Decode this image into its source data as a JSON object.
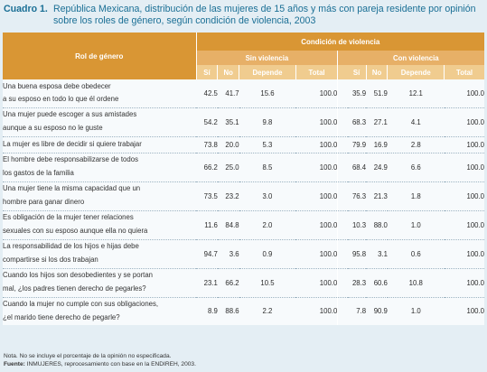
{
  "caption": {
    "number": "Cuadro 1.",
    "text": "República Mexicana, distribución de las mujeres de 15 años y más con pareja residente por opinión sobre los roles de género, según condición de violencia, 2003"
  },
  "table": {
    "row_header": "Rol de género",
    "group_header": "Condición de violencia",
    "sub_left": "Sin violencia",
    "sub_right": "Con violencia",
    "cols": [
      "Sí",
      "No",
      "Depende",
      "Total",
      "Sí",
      "No",
      "Depende",
      "Total"
    ],
    "rows": [
      {
        "l1": "Una buena esposa debe obedecer",
        "l2": "a su esposo en todo lo que él ordene",
        "v": [
          "42.5",
          "41.7",
          "15.6",
          "100.0",
          "35.9",
          "51.9",
          "12.1",
          "100.0"
        ]
      },
      {
        "l1": "Una mujer puede escoger a sus amistades",
        "l2": "aunque a su esposo no le guste",
        "v": [
          "54.2",
          "35.1",
          "9.8",
          "100.0",
          "68.3",
          "27.1",
          "4.1",
          "100.0"
        ]
      },
      {
        "l1": "La mujer es libre de decidir si quiere trabajar",
        "l2": "",
        "v": [
          "73.8",
          "20.0",
          "5.3",
          "100.0",
          "79.9",
          "16.9",
          "2.8",
          "100.0"
        ]
      },
      {
        "l1": "El hombre debe responsabilizarse de todos",
        "l2": "los gastos de la familia",
        "v": [
          "66.2",
          "25.0",
          "8.5",
          "100.0",
          "68.4",
          "24.9",
          "6.6",
          "100.0"
        ]
      },
      {
        "l1": "Una mujer tiene la misma capacidad que un",
        "l2": "hombre para ganar dinero",
        "v": [
          "73.5",
          "23.2",
          "3.0",
          "100.0",
          "76.3",
          "21.3",
          "1.8",
          "100.0"
        ]
      },
      {
        "l1": "Es obligación de la mujer tener relaciones",
        "l2": "sexuales con su esposo aunque ella no quiera",
        "v": [
          "11.6",
          "84.8",
          "2.0",
          "100.0",
          "10.3",
          "88.0",
          "1.0",
          "100.0"
        ]
      },
      {
        "l1": "La responsabilidad de los hijos e hijas debe",
        "l2": "compartirse si los dos trabajan",
        "v": [
          "94.7",
          "3.6",
          "0.9",
          "100.0",
          "95.8",
          "3.1",
          "0.6",
          "100.0"
        ]
      },
      {
        "l1": "Cuando los hijos son desobedientes y se portan",
        "l2": "mal, ¿los padres tienen derecho de pegarles?",
        "v": [
          "23.1",
          "66.2",
          "10.5",
          "100.0",
          "28.3",
          "60.6",
          "10.8",
          "100.0"
        ]
      },
      {
        "l1": "Cuando la mujer no cumple con sus obligaciones,",
        "l2": "¿el marido tiene derecho de pegarle?",
        "v": [
          "8.9",
          "88.6",
          "2.2",
          "100.0",
          "7.8",
          "90.9",
          "1.0",
          "100.0"
        ]
      }
    ]
  },
  "notes": {
    "nota": "Nota. No se incluye el porcentaje de la opinión no especificada.",
    "fuente_label": "Fuente:",
    "fuente": "INMUJERES, reprocesamiento con base en la ENDIREH, 2003."
  }
}
